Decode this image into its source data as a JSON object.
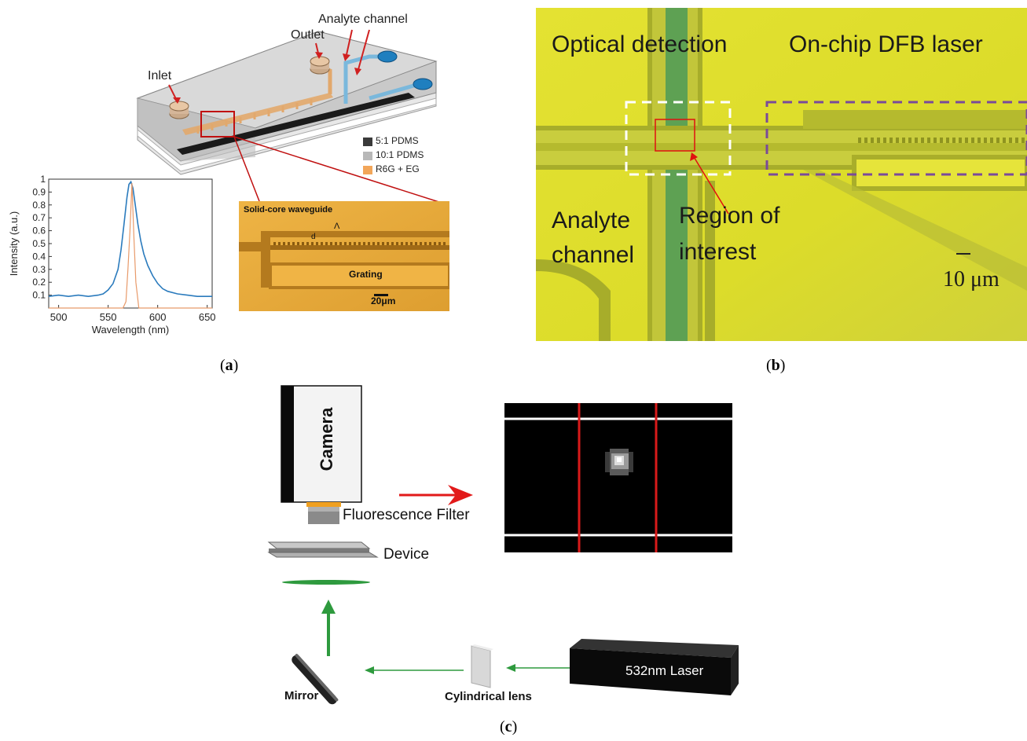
{
  "panel_a": {
    "caption": "(a)",
    "labels": {
      "analyte_channel": "Analyte channel",
      "outlet": "Outlet",
      "inlet": "Inlet"
    },
    "legend": [
      {
        "label": "5:1 PDMS",
        "color": "#3a3a3a"
      },
      {
        "label": "10:1 PDMS",
        "color": "#b8b8b8"
      },
      {
        "label": "R6G + EG",
        "color": "#f2a65a"
      }
    ],
    "micrograph": {
      "waveguide_label": "Solid-core waveguide",
      "grating_label": "Grating",
      "d_label": "d",
      "lambda_label": "Λ",
      "scale_label": "20μm"
    }
  },
  "panel_b": {
    "caption": "(b)",
    "optical_detection": "Optical detection",
    "dfb_laser": "On-chip DFB laser",
    "analyte_channel_line1": "Analyte",
    "analyte_channel_line2": "channel",
    "roi_line1": "Region of",
    "roi_line2": "interest",
    "scale_label": "10 μm"
  },
  "panel_c": {
    "caption": "(c)",
    "camera": "Camera",
    "filter": "Fluorescence Filter",
    "device": "Device",
    "mirror": "Mirror",
    "lens": "Cylindrical lens",
    "laser": "532nm Laser"
  },
  "chart_data": {
    "type": "line",
    "xlabel": "Wavelength (nm)",
    "ylabel": "Intensity (a.u.)",
    "xlim": [
      490,
      655
    ],
    "ylim": [
      0,
      1
    ],
    "x_ticks": [
      500,
      550,
      600,
      650
    ],
    "y_ticks": [
      0.1,
      0.2,
      0.3,
      0.4,
      0.5,
      0.6,
      0.7,
      0.8,
      0.9,
      1
    ],
    "series": [
      {
        "color": "#2b7bbd",
        "x": [
          490,
          500,
          510,
          520,
          530,
          540,
          545,
          550,
          555,
          560,
          563,
          566,
          569,
          571,
          573,
          575,
          577,
          580,
          583,
          586,
          590,
          595,
          600,
          605,
          610,
          620,
          630,
          640,
          655
        ],
        "y": [
          0.09,
          0.1,
          0.09,
          0.1,
          0.09,
          0.1,
          0.11,
          0.14,
          0.19,
          0.3,
          0.45,
          0.65,
          0.86,
          0.96,
          0.98,
          0.93,
          0.82,
          0.65,
          0.52,
          0.42,
          0.33,
          0.25,
          0.19,
          0.15,
          0.13,
          0.11,
          0.1,
          0.09,
          0.09
        ]
      },
      {
        "color": "#e89a6a",
        "x": [
          490,
          565,
          568,
          570,
          572,
          574,
          576,
          578,
          581,
          655
        ],
        "y": [
          0.0,
          0.0,
          0.05,
          0.3,
          0.6,
          0.97,
          0.55,
          0.2,
          0.0,
          0.0
        ]
      }
    ]
  }
}
